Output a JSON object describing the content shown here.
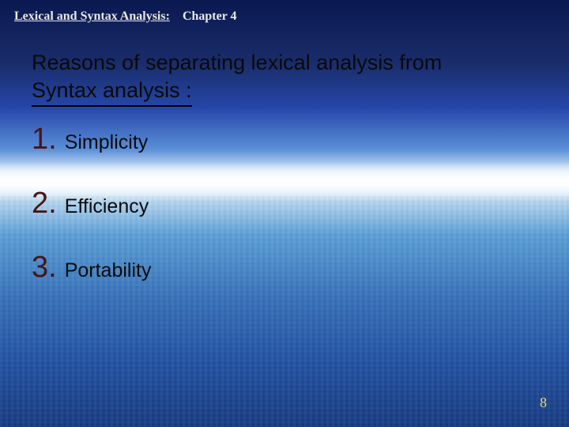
{
  "header": {
    "lexical": "Lexical and Syntax Analysis:",
    "chapter": "Chapter 4"
  },
  "title": {
    "line1": "Reasons of separating lexical analysis from",
    "line2": "Syntax analysis :"
  },
  "items": [
    {
      "num": "1.",
      "text": "Simplicity"
    },
    {
      "num": "2.",
      "text": "Efficiency"
    },
    {
      "num": "3.",
      "text": "Portability"
    }
  ],
  "pageNumber": "8",
  "colors": {
    "numeral": "#4a1515",
    "body": "#0a0a0a",
    "header": "#e8e8e8",
    "pagenum": "#f0d878"
  }
}
